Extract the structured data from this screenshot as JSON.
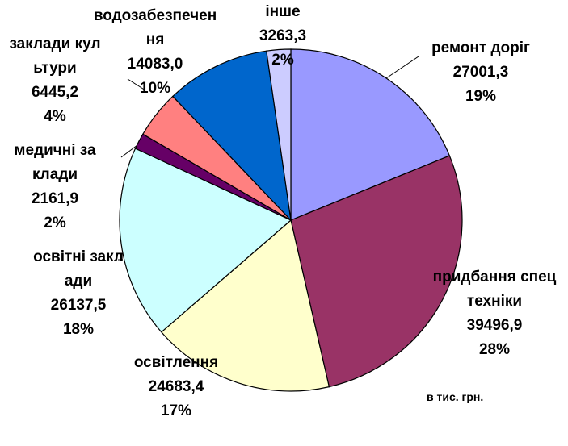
{
  "chart_data": {
    "type": "pie",
    "categories": [
      "ремонт доріг",
      "придбання спецтехніки",
      "освітлення",
      "освітні заклади",
      "медичні заклади",
      "заклади культури",
      "водозабезпечення",
      "інше"
    ],
    "values": [
      27001.3,
      39496.9,
      24683.4,
      26137.5,
      2161.9,
      6445.2,
      14083.0,
      3263.3
    ],
    "value_labels": [
      "27001,3",
      "39496,9",
      "24683,4",
      "26137,5",
      "2161,9",
      "6445,2",
      "14083,0",
      "3263,3"
    ],
    "percent_labels": [
      "19%",
      "28%",
      "17%",
      "18%",
      "2%",
      "4%",
      "10%",
      "2%"
    ],
    "colors": [
      "#9999ff",
      "#993366",
      "#ffffcc",
      "#ccffff",
      "#660066",
      "#ff8080",
      "#0066cc",
      "#ccccff"
    ],
    "annotation": "в тис. грн."
  }
}
